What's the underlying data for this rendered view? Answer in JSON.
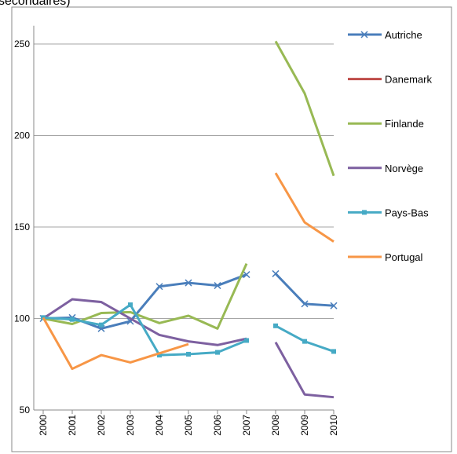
{
  "chart_data": {
    "type": "line",
    "title": "secondaires)",
    "x": [
      2000,
      2001,
      2002,
      2003,
      2004,
      2005,
      2006,
      2007,
      2007.5,
      2008,
      2009,
      2010
    ],
    "xlim": [
      2000,
      2010
    ],
    "xticks": [
      2000,
      2001,
      2002,
      2003,
      2004,
      2005,
      2006,
      2007,
      2008,
      2009,
      2010
    ],
    "ylim": [
      50,
      260
    ],
    "yticks": [
      50,
      100,
      150,
      200,
      250
    ],
    "grid": true,
    "legend": "right",
    "series": [
      {
        "name": "Autriche",
        "color": "#4a7ebb",
        "marker": "x",
        "values": [
          100,
          100.5,
          94.5,
          98.5,
          117.5,
          119.5,
          118,
          124,
          null,
          124.5,
          108,
          107
        ]
      },
      {
        "name": "Danemark",
        "color": "#be4b48",
        "marker": "none",
        "values": [
          null,
          null,
          null,
          null,
          null,
          null,
          null,
          null,
          null,
          null,
          null,
          null
        ]
      },
      {
        "name": "Finlande",
        "color": "#98b954",
        "marker": "none",
        "values": [
          100,
          97,
          103,
          103.5,
          97.5,
          101.5,
          94.5,
          130,
          null,
          251.5,
          223,
          178
        ]
      },
      {
        "name": "Norvège",
        "color": "#7d60a0",
        "marker": "none",
        "values": [
          100,
          110.5,
          109,
          100,
          91,
          87.5,
          85.5,
          89,
          null,
          87,
          58.5,
          57
        ]
      },
      {
        "name": "Pays-Bas",
        "color": "#46aac5",
        "marker": "square",
        "values": [
          100.5,
          99.5,
          96.5,
          107.5,
          80,
          80.5,
          81.5,
          88,
          null,
          96,
          87.5,
          82
        ]
      },
      {
        "name": "Portugal",
        "color": "#f79646",
        "marker": "none",
        "values": [
          100.5,
          72.5,
          80,
          76,
          81,
          86,
          null,
          null,
          null,
          179.5,
          152.5,
          142
        ]
      }
    ]
  }
}
